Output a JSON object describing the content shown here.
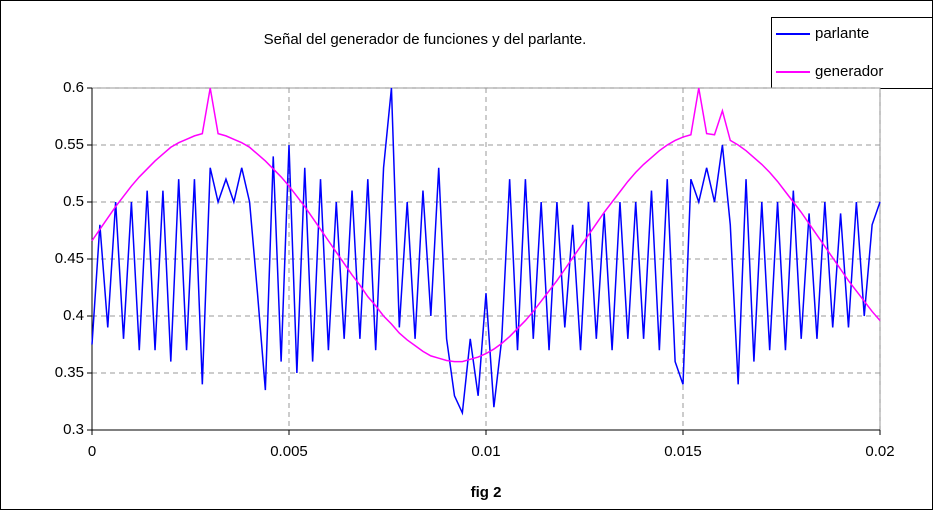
{
  "chart_data": {
    "type": "line",
    "title": "Señal del generador de funciones y del parlante.",
    "x_label": "fig 2",
    "x": [
      0,
      0.0002,
      0.0004,
      0.0006,
      0.0008,
      0.001,
      0.0012,
      0.0014,
      0.0016,
      0.0018,
      0.002,
      0.0022,
      0.0024,
      0.0026,
      0.0028,
      0.003,
      0.0032,
      0.0034,
      0.0036,
      0.0038,
      0.004,
      0.0042,
      0.0044,
      0.0046,
      0.0048,
      0.005,
      0.0052,
      0.0054,
      0.0056,
      0.0058,
      0.006,
      0.0062,
      0.0064,
      0.0066,
      0.0068,
      0.007,
      0.0072,
      0.0074,
      0.0076,
      0.0078,
      0.008,
      0.0082,
      0.0084,
      0.0086,
      0.0088,
      0.009,
      0.0092,
      0.0094,
      0.0096,
      0.0098,
      0.01,
      0.0102,
      0.0104,
      0.0106,
      0.0108,
      0.011,
      0.0112,
      0.0114,
      0.0116,
      0.0118,
      0.012,
      0.0122,
      0.0124,
      0.0126,
      0.0128,
      0.013,
      0.0132,
      0.0134,
      0.0136,
      0.0138,
      0.014,
      0.0142,
      0.0144,
      0.0146,
      0.0148,
      0.015,
      0.0152,
      0.0154,
      0.0156,
      0.0158,
      0.016,
      0.0162,
      0.0164,
      0.0166,
      0.0168,
      0.017,
      0.0172,
      0.0174,
      0.0176,
      0.0178,
      0.018,
      0.0182,
      0.0184,
      0.0186,
      0.0188,
      0.019,
      0.0192,
      0.0194,
      0.0196,
      0.0198,
      0.02
    ],
    "series": [
      {
        "name": "parlante",
        "color": "#0000ff",
        "values": [
          0.375,
          0.48,
          0.39,
          0.5,
          0.38,
          0.5,
          0.37,
          0.51,
          0.37,
          0.51,
          0.36,
          0.52,
          0.37,
          0.52,
          0.34,
          0.53,
          0.5,
          0.52,
          0.5,
          0.53,
          0.5,
          0.42,
          0.335,
          0.54,
          0.36,
          0.55,
          0.35,
          0.53,
          0.36,
          0.52,
          0.37,
          0.5,
          0.38,
          0.51,
          0.38,
          0.52,
          0.37,
          0.53,
          0.6,
          0.39,
          0.5,
          0.38,
          0.51,
          0.4,
          0.53,
          0.38,
          0.33,
          0.315,
          0.38,
          0.33,
          0.42,
          0.32,
          0.38,
          0.52,
          0.37,
          0.52,
          0.38,
          0.5,
          0.37,
          0.5,
          0.39,
          0.48,
          0.37,
          0.5,
          0.38,
          0.49,
          0.37,
          0.5,
          0.38,
          0.5,
          0.38,
          0.51,
          0.37,
          0.52,
          0.36,
          0.34,
          0.52,
          0.5,
          0.53,
          0.5,
          0.55,
          0.48,
          0.34,
          0.52,
          0.36,
          0.5,
          0.37,
          0.5,
          0.37,
          0.51,
          0.38,
          0.49,
          0.38,
          0.5,
          0.39,
          0.49,
          0.39,
          0.5,
          0.4,
          0.48,
          0.5
        ]
      },
      {
        "name": "generador",
        "color": "#ff00ff",
        "values": [
          0.466,
          0.476,
          0.486,
          0.496,
          0.505,
          0.514,
          0.522,
          0.529,
          0.536,
          0.542,
          0.548,
          0.552,
          0.555,
          0.558,
          0.56,
          0.6,
          0.56,
          0.558,
          0.555,
          0.552,
          0.548,
          0.542,
          0.536,
          0.529,
          0.522,
          0.514,
          0.505,
          0.496,
          0.486,
          0.476,
          0.466,
          0.456,
          0.446,
          0.436,
          0.427,
          0.417,
          0.409,
          0.4,
          0.393,
          0.385,
          0.379,
          0.374,
          0.369,
          0.365,
          0.363,
          0.361,
          0.36,
          0.36,
          0.362,
          0.364,
          0.367,
          0.371,
          0.376,
          0.382,
          0.389,
          0.396,
          0.404,
          0.413,
          0.422,
          0.431,
          0.441,
          0.451,
          0.461,
          0.471,
          0.481,
          0.491,
          0.5,
          0.509,
          0.518,
          0.526,
          0.533,
          0.539,
          0.545,
          0.55,
          0.554,
          0.557,
          0.559,
          0.6,
          0.56,
          0.559,
          0.58,
          0.554,
          0.55,
          0.545,
          0.539,
          0.533,
          0.526,
          0.518,
          0.509,
          0.5,
          0.491,
          0.481,
          0.471,
          0.461,
          0.451,
          0.441,
          0.431,
          0.422,
          0.413,
          0.404,
          0.396
        ]
      }
    ],
    "xlim": [
      0,
      0.02
    ],
    "xticks": [
      0,
      0.005,
      0.01,
      0.015,
      0.02
    ],
    "ylim": [
      0.3,
      0.6
    ],
    "yticks": [
      0.3,
      0.35,
      0.4,
      0.45,
      0.5,
      0.55,
      0.6
    ],
    "grid": true,
    "legend": "top-right"
  }
}
